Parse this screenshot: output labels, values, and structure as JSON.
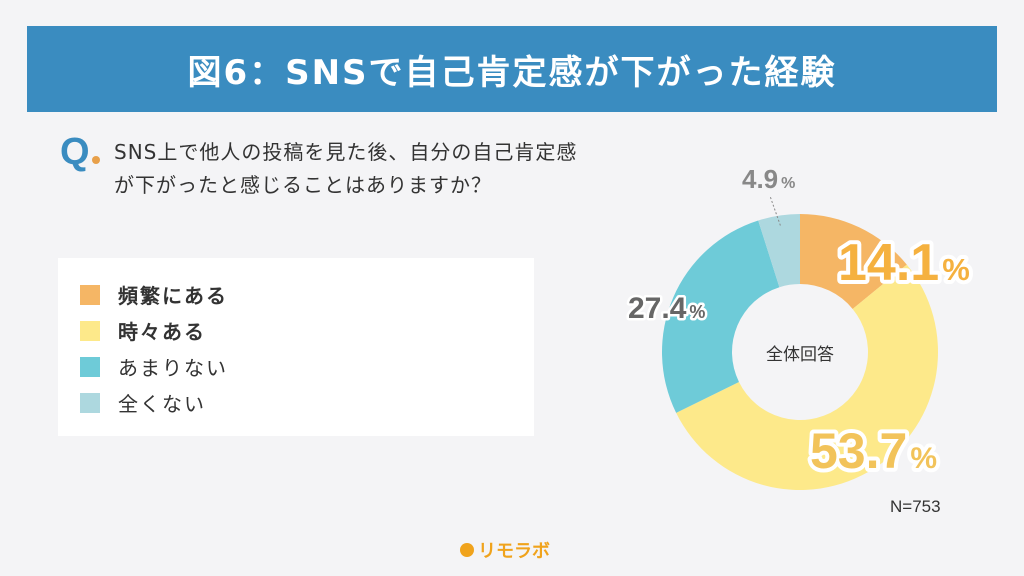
{
  "header": {
    "title": "図6：SNSで自己肯定感が下がった経験"
  },
  "question": {
    "mark": "Q",
    "text": "SNS上で他人の投稿を見た後、自分の自己肯定感が下がったと感じることはありますか？"
  },
  "legend": {
    "items": [
      {
        "label": "頻繁にある",
        "color": "#f5b665",
        "bold": true
      },
      {
        "label": "時々ある",
        "color": "#fde98a",
        "bold": true
      },
      {
        "label": "あまりない",
        "color": "#6ecbd8",
        "bold": false
      },
      {
        "label": "全くない",
        "color": "#add8df",
        "bold": false
      }
    ]
  },
  "chart_data": {
    "type": "pie",
    "donut": true,
    "center_label": "全体回答",
    "categories": [
      "頻繁にある",
      "時々ある",
      "あまりない",
      "全くない"
    ],
    "values": [
      14.1,
      53.7,
      27.4,
      4.9
    ],
    "value_labels": [
      "14.1",
      "53.7",
      "27.4",
      "4.9"
    ],
    "unit": "%",
    "colors": [
      "#f5b665",
      "#fde98a",
      "#6ecbd8",
      "#add8df"
    ],
    "label_colors": [
      "#f5b13f",
      "#f2c35a",
      "#666666",
      "#888888"
    ],
    "note": "N=753"
  },
  "footer": {
    "logo_text": "リモラボ"
  }
}
